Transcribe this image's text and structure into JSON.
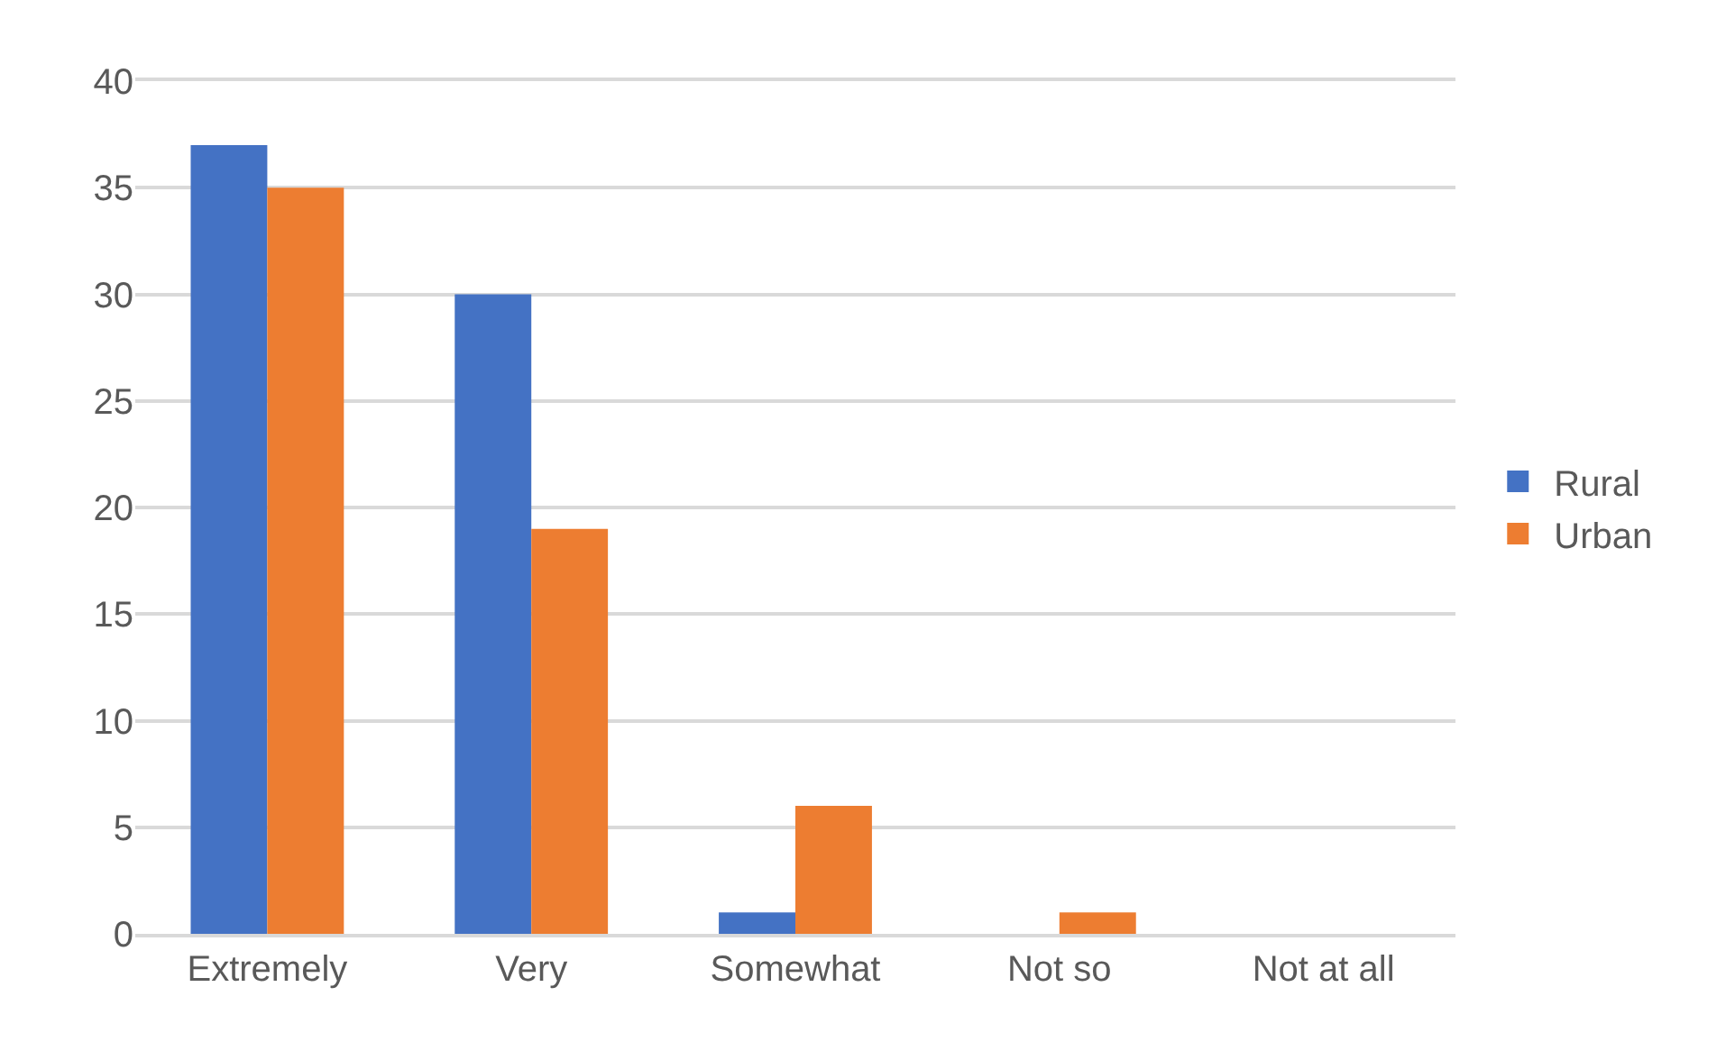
{
  "chart_data": {
    "type": "bar",
    "categories": [
      "Extremely",
      "Very",
      "Somewhat",
      "Not so",
      "Not at all"
    ],
    "series": [
      {
        "name": "Rural",
        "color": "#4472c4",
        "values": [
          37,
          30,
          1,
          0,
          0
        ]
      },
      {
        "name": "Urban",
        "color": "#ed7d31",
        "values": [
          35,
          19,
          6,
          1,
          0
        ]
      }
    ],
    "ylim": [
      0,
      40
    ],
    "yticks": [
      0,
      5,
      10,
      15,
      20,
      25,
      30,
      35,
      40
    ],
    "grid": "y",
    "legend": "right"
  }
}
